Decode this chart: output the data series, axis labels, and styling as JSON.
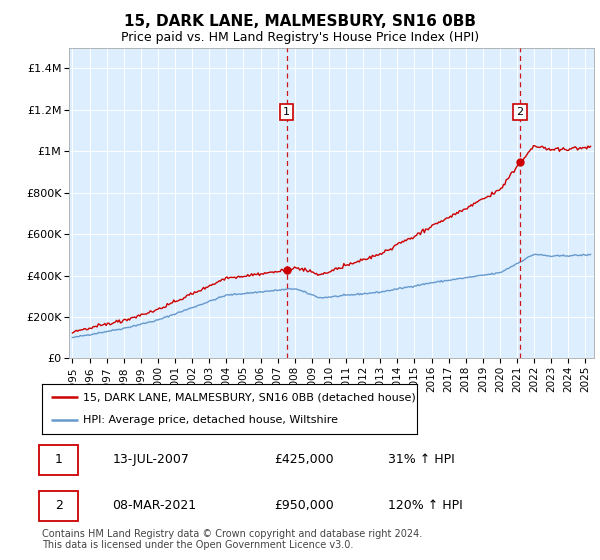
{
  "title": "15, DARK LANE, MALMESBURY, SN16 0BB",
  "subtitle": "Price paid vs. HM Land Registry's House Price Index (HPI)",
  "title_fontsize": 11,
  "subtitle_fontsize": 9,
  "background_color": "#ffffff",
  "plot_bg_color": "#ddeeff",
  "yticks": [
    0,
    200000,
    400000,
    600000,
    800000,
    1000000,
    1200000,
    1400000
  ],
  "ytick_labels": [
    "£0",
    "£200K",
    "£400K",
    "£600K",
    "£800K",
    "£1M",
    "£1.2M",
    "£1.4M"
  ],
  "ylim": [
    0,
    1500000
  ],
  "xlim_start": 1994.8,
  "xlim_end": 2025.5,
  "xtick_years": [
    1995,
    1996,
    1997,
    1998,
    1999,
    2000,
    2001,
    2002,
    2003,
    2004,
    2005,
    2006,
    2007,
    2008,
    2009,
    2010,
    2011,
    2012,
    2013,
    2014,
    2015,
    2016,
    2017,
    2018,
    2019,
    2020,
    2021,
    2022,
    2023,
    2024,
    2025
  ],
  "sale1_x": 2007.53,
  "sale1_y": 425000,
  "sale1_label": "1",
  "sale2_x": 2021.18,
  "sale2_y": 950000,
  "sale2_label": "2",
  "hpi_color": "#6699cc",
  "price_color": "#cc0000",
  "dashed_line_color": "#cc0000",
  "legend_line1": "15, DARK LANE, MALMESBURY, SN16 0BB (detached house)",
  "legend_line2": "HPI: Average price, detached house, Wiltshire",
  "annotation1_date": "13-JUL-2007",
  "annotation1_price": "£425,000",
  "annotation1_hpi": "31% ↑ HPI",
  "annotation2_date": "08-MAR-2021",
  "annotation2_price": "£950,000",
  "annotation2_hpi": "120% ↑ HPI",
  "footer_text": "Contains HM Land Registry data © Crown copyright and database right 2024.\nThis data is licensed under the Open Government Licence v3.0."
}
